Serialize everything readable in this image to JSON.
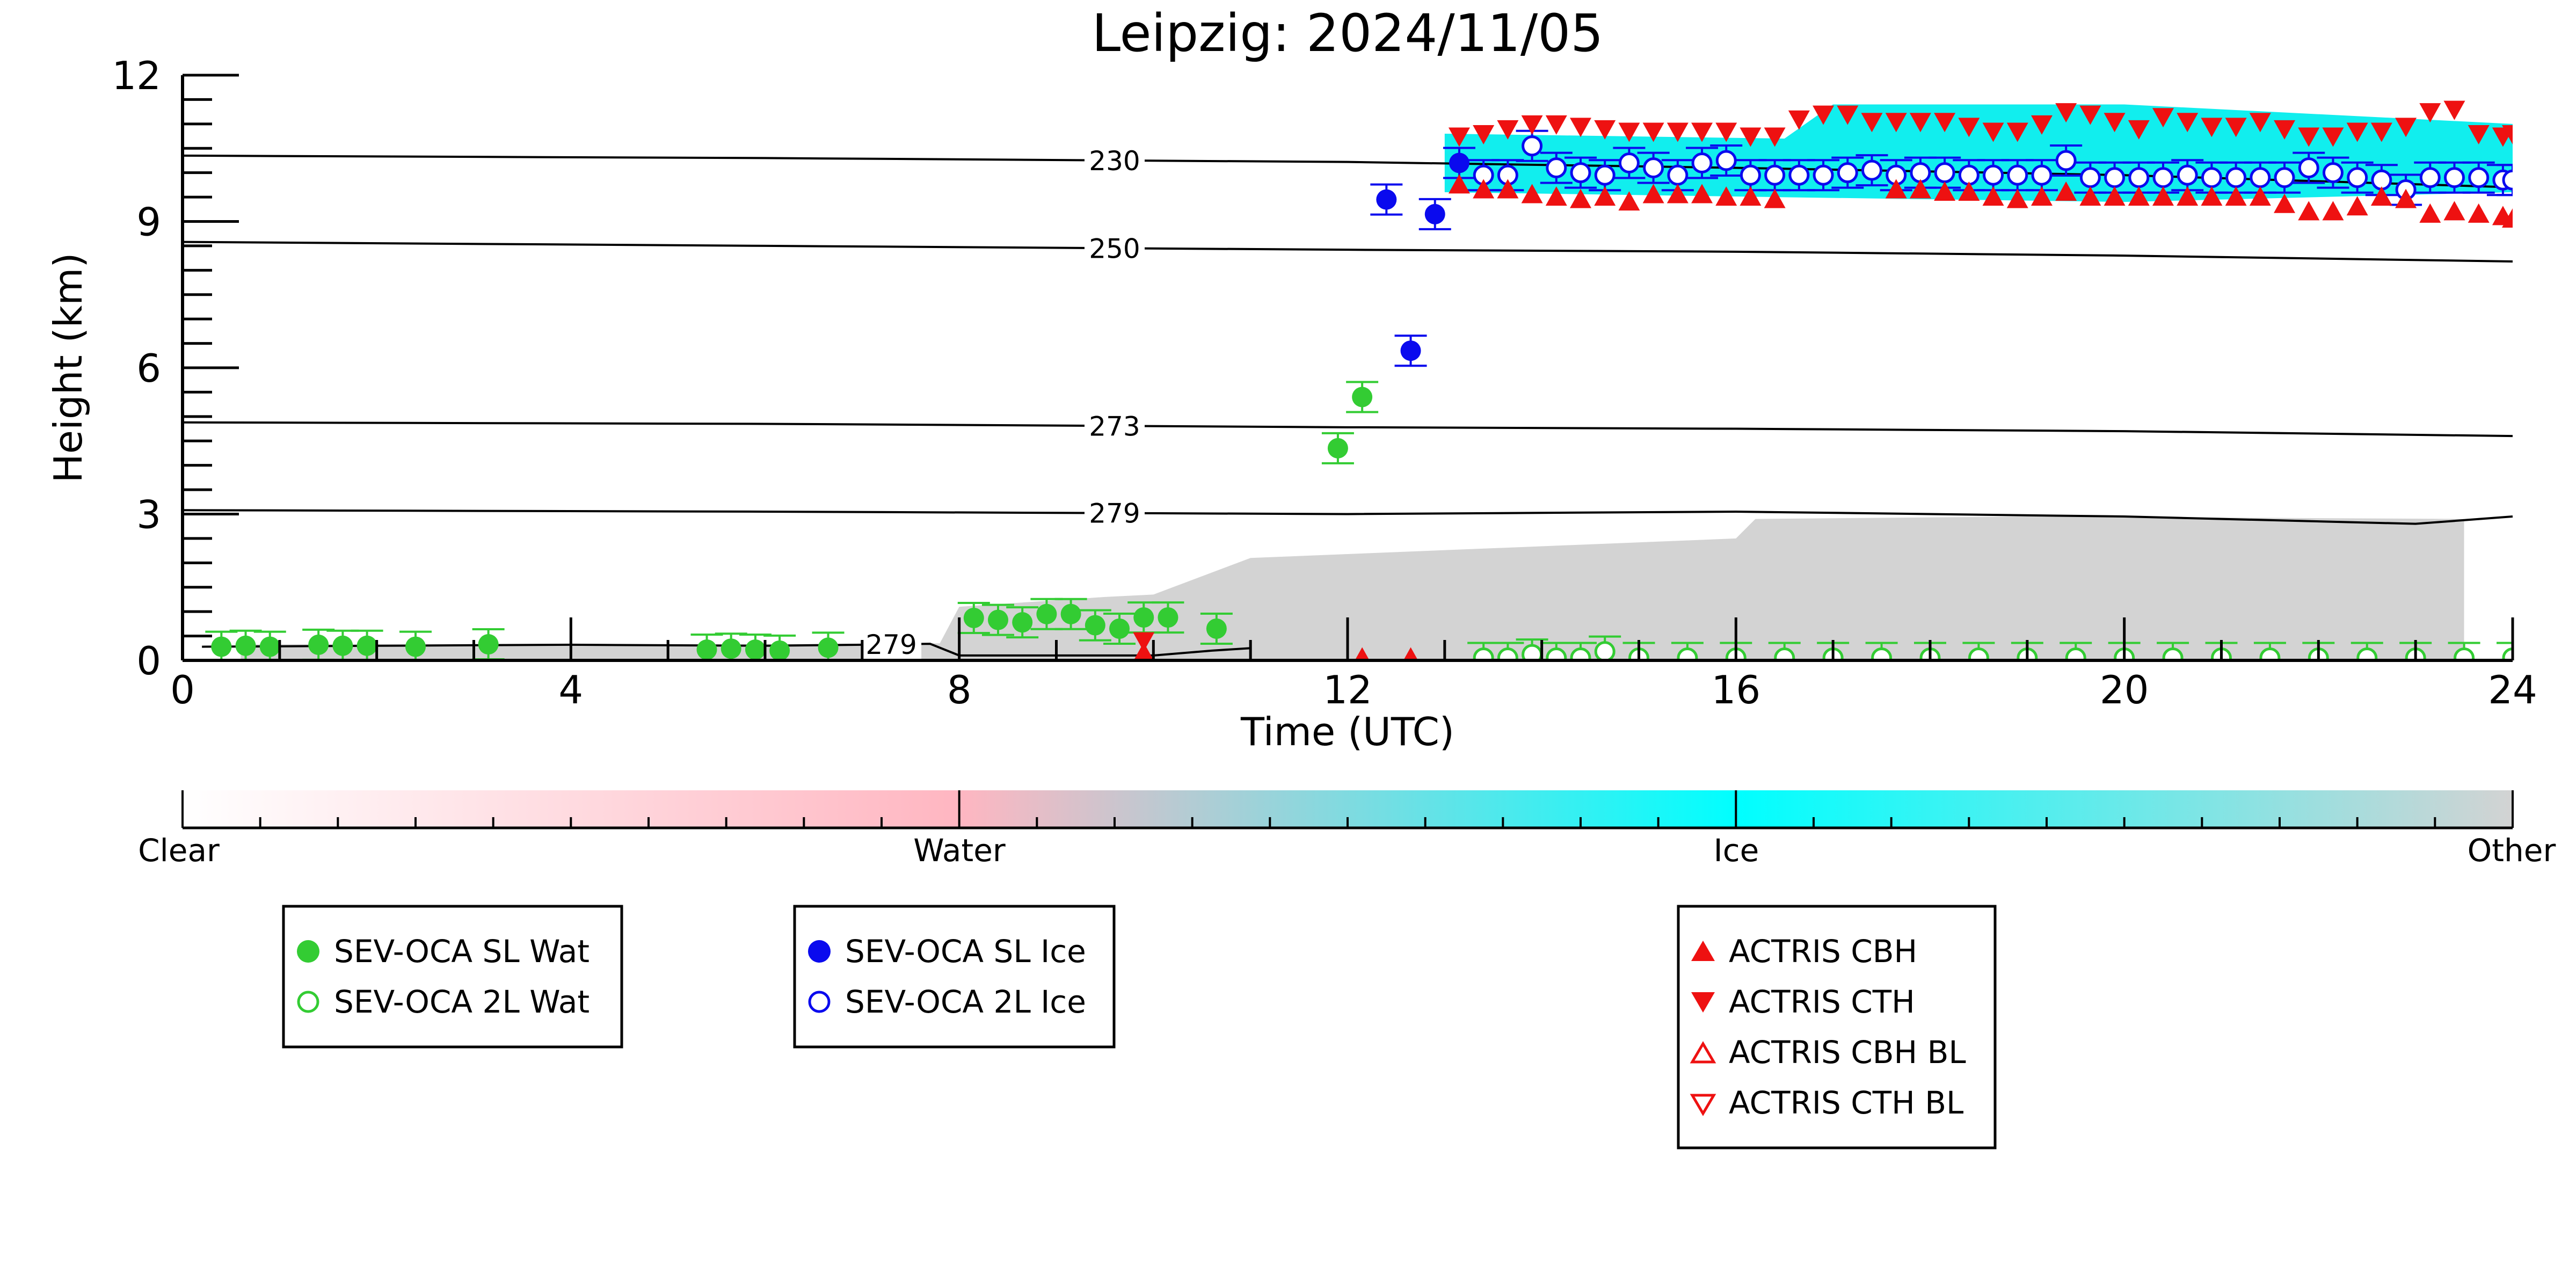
{
  "chart_data": {
    "type": "scatter",
    "title": "Leipzig: 2024/11/05",
    "xlabel": "Time (UTC)",
    "ylabel": "Height (km)",
    "xlim": [
      0,
      24
    ],
    "ylim": [
      0,
      12
    ],
    "x_ticks": [
      "0",
      "4",
      "8",
      "12",
      "16",
      "20",
      "24"
    ],
    "y_ticks": [
      "0",
      "3",
      "6",
      "9",
      "12"
    ],
    "colorbar_labels": [
      "Clear",
      "Water",
      "Ice",
      "Other"
    ],
    "colors": {
      "sl_wat": "#33cc33",
      "twol_wat": "#33cc33",
      "sl_ice": "#0a0aee",
      "twol_ice": "#0a0aee",
      "actris": "#ee1111",
      "ice_region": "#11eeee",
      "other_region": "#d3d3d3",
      "water_colorbar": "#ffb6c1"
    },
    "isotherms": [
      {
        "label": "230",
        "label_x": 9.6,
        "points": [
          [
            0,
            10.35
          ],
          [
            6,
            10.3
          ],
          [
            12,
            10.22
          ],
          [
            16,
            10.1
          ],
          [
            20,
            9.95
          ],
          [
            24,
            9.7
          ]
        ]
      },
      {
        "label": "250",
        "label_x": 9.6,
        "points": [
          [
            0,
            8.58
          ],
          [
            6,
            8.5
          ],
          [
            12,
            8.42
          ],
          [
            16,
            8.38
          ],
          [
            20,
            8.3
          ],
          [
            24,
            8.18
          ]
        ]
      },
      {
        "label": "273",
        "label_x": 9.6,
        "points": [
          [
            0,
            4.88
          ],
          [
            6,
            4.85
          ],
          [
            12,
            4.78
          ],
          [
            16,
            4.75
          ],
          [
            20,
            4.7
          ],
          [
            24,
            4.6
          ]
        ]
      },
      {
        "label": "279",
        "label_x": 9.6,
        "points": [
          [
            0,
            3.08
          ],
          [
            6,
            3.05
          ],
          [
            12,
            3.0
          ],
          [
            16,
            3.05
          ],
          [
            20,
            2.95
          ],
          [
            23,
            2.8
          ],
          [
            24,
            2.95
          ]
        ]
      },
      {
        "label": "279",
        "label_x": 7.3,
        "points": [
          [
            0.2,
            0.28
          ],
          [
            2,
            0.3
          ],
          [
            4,
            0.32
          ],
          [
            6,
            0.3
          ],
          [
            7.0,
            0.32
          ],
          [
            7.7,
            0.34
          ],
          [
            8,
            0.1
          ],
          [
            10,
            0.1
          ],
          [
            10.6,
            0.2
          ],
          [
            11,
            0.25
          ]
        ]
      }
    ],
    "series": [
      {
        "name": "SEV-OCA SL Wat",
        "points": [
          [
            0.4,
            0.28
          ],
          [
            0.65,
            0.3
          ],
          [
            0.9,
            0.28
          ],
          [
            1.4,
            0.32
          ],
          [
            1.65,
            0.3
          ],
          [
            1.9,
            0.3
          ],
          [
            2.4,
            0.28
          ],
          [
            3.15,
            0.33
          ],
          [
            5.4,
            0.22
          ],
          [
            5.65,
            0.24
          ],
          [
            5.9,
            0.22
          ],
          [
            6.15,
            0.2
          ],
          [
            6.65,
            0.26
          ],
          [
            8.15,
            0.87
          ],
          [
            8.4,
            0.83
          ],
          [
            8.65,
            0.78
          ],
          [
            8.9,
            0.95
          ],
          [
            9.15,
            0.95
          ],
          [
            9.4,
            0.72
          ],
          [
            9.65,
            0.65
          ],
          [
            9.9,
            0.88
          ],
          [
            10.15,
            0.88
          ],
          [
            10.65,
            0.65
          ],
          [
            11.9,
            4.35
          ],
          [
            12.15,
            5.4
          ]
        ]
      },
      {
        "name": "SEV-OCA 2L Wat",
        "points": [
          [
            13.4,
            0.05
          ],
          [
            13.65,
            0.05
          ],
          [
            13.9,
            0.12
          ],
          [
            14.15,
            0.05
          ],
          [
            14.4,
            0.05
          ],
          [
            14.65,
            0.18
          ],
          [
            15.0,
            0.05
          ],
          [
            15.5,
            0.05
          ],
          [
            16.0,
            0.05
          ],
          [
            16.5,
            0.05
          ],
          [
            17.0,
            0.05
          ],
          [
            17.5,
            0.05
          ],
          [
            18.0,
            0.05
          ],
          [
            18.5,
            0.05
          ],
          [
            19.0,
            0.05
          ],
          [
            19.5,
            0.05
          ],
          [
            20.0,
            0.05
          ],
          [
            20.5,
            0.05
          ],
          [
            21.0,
            0.05
          ],
          [
            21.5,
            0.05
          ],
          [
            22.0,
            0.05
          ],
          [
            22.5,
            0.05
          ],
          [
            23.0,
            0.05
          ],
          [
            23.5,
            0.05
          ],
          [
            24.0,
            0.05
          ]
        ]
      },
      {
        "name": "SEV-OCA SL Ice",
        "points": [
          [
            12.4,
            9.45
          ],
          [
            12.65,
            6.35
          ],
          [
            12.9,
            9.15
          ],
          [
            13.15,
            10.2
          ]
        ]
      },
      {
        "name": "SEV-OCA 2L Ice",
        "points": [
          [
            13.4,
            9.95
          ],
          [
            13.65,
            9.95
          ],
          [
            13.9,
            10.55
          ],
          [
            14.15,
            10.1
          ],
          [
            14.4,
            10.0
          ],
          [
            14.65,
            9.95
          ],
          [
            14.9,
            10.2
          ],
          [
            15.15,
            10.1
          ],
          [
            15.4,
            9.95
          ],
          [
            15.65,
            10.2
          ],
          [
            15.9,
            10.25
          ],
          [
            16.15,
            9.95
          ],
          [
            16.4,
            9.95
          ],
          [
            16.65,
            9.95
          ],
          [
            16.9,
            9.95
          ],
          [
            17.15,
            10.0
          ],
          [
            17.4,
            10.05
          ],
          [
            17.65,
            9.95
          ],
          [
            17.9,
            10.0
          ],
          [
            18.15,
            10.0
          ],
          [
            18.4,
            9.95
          ],
          [
            18.65,
            9.95
          ],
          [
            18.9,
            9.95
          ],
          [
            19.15,
            9.95
          ],
          [
            19.4,
            10.25
          ],
          [
            19.65,
            9.9
          ],
          [
            19.9,
            9.9
          ],
          [
            20.15,
            9.9
          ],
          [
            20.4,
            9.9
          ],
          [
            20.65,
            9.95
          ],
          [
            20.9,
            9.9
          ],
          [
            21.15,
            9.9
          ],
          [
            21.4,
            9.9
          ],
          [
            21.65,
            9.9
          ],
          [
            21.9,
            10.1
          ],
          [
            22.15,
            10.0
          ],
          [
            22.4,
            9.9
          ],
          [
            22.65,
            9.85
          ],
          [
            22.9,
            9.65
          ],
          [
            23.15,
            9.9
          ],
          [
            23.4,
            9.9
          ],
          [
            23.65,
            9.9
          ],
          [
            23.9,
            9.85
          ],
          [
            24.0,
            9.85
          ]
        ]
      },
      {
        "name": "ACTRIS CBH",
        "points": [
          [
            13.15,
            9.75
          ],
          [
            13.4,
            9.65
          ],
          [
            13.65,
            9.65
          ],
          [
            13.9,
            9.55
          ],
          [
            14.15,
            9.5
          ],
          [
            14.4,
            9.45
          ],
          [
            14.65,
            9.5
          ],
          [
            14.9,
            9.4
          ],
          [
            15.15,
            9.55
          ],
          [
            15.4,
            9.55
          ],
          [
            15.65,
            9.55
          ],
          [
            15.9,
            9.5
          ],
          [
            16.15,
            9.5
          ],
          [
            16.4,
            9.45
          ],
          [
            17.65,
            9.65
          ],
          [
            17.9,
            9.65
          ],
          [
            18.15,
            9.6
          ],
          [
            18.4,
            9.6
          ],
          [
            18.65,
            9.5
          ],
          [
            18.9,
            9.45
          ],
          [
            19.15,
            9.5
          ],
          [
            19.4,
            9.6
          ],
          [
            19.65,
            9.5
          ],
          [
            19.9,
            9.5
          ],
          [
            20.15,
            9.5
          ],
          [
            20.4,
            9.5
          ],
          [
            20.65,
            9.5
          ],
          [
            20.9,
            9.5
          ],
          [
            21.15,
            9.5
          ],
          [
            21.4,
            9.5
          ],
          [
            21.65,
            9.35
          ],
          [
            21.9,
            9.2
          ],
          [
            22.15,
            9.2
          ],
          [
            22.4,
            9.3
          ],
          [
            22.65,
            9.5
          ],
          [
            22.9,
            9.45
          ],
          [
            23.15,
            9.15
          ],
          [
            23.4,
            9.2
          ],
          [
            23.65,
            9.15
          ],
          [
            23.9,
            9.1
          ],
          [
            24.0,
            9.05
          ],
          [
            12.15,
            0.05
          ],
          [
            12.65,
            0.05
          ],
          [
            9.9,
            0.15
          ]
        ]
      },
      {
        "name": "ACTRIS CTH",
        "points": [
          [
            13.15,
            10.75
          ],
          [
            13.4,
            10.8
          ],
          [
            13.65,
            10.9
          ],
          [
            13.9,
            11.0
          ],
          [
            14.15,
            11.0
          ],
          [
            14.4,
            10.95
          ],
          [
            14.65,
            10.9
          ],
          [
            14.9,
            10.85
          ],
          [
            15.15,
            10.85
          ],
          [
            15.4,
            10.85
          ],
          [
            15.65,
            10.85
          ],
          [
            15.9,
            10.85
          ],
          [
            16.15,
            10.75
          ],
          [
            16.4,
            10.75
          ],
          [
            16.65,
            11.1
          ],
          [
            16.9,
            11.2
          ],
          [
            17.15,
            11.2
          ],
          [
            17.4,
            11.05
          ],
          [
            17.65,
            11.05
          ],
          [
            17.9,
            11.05
          ],
          [
            18.15,
            11.05
          ],
          [
            18.4,
            10.95
          ],
          [
            18.65,
            10.85
          ],
          [
            18.9,
            10.85
          ],
          [
            19.15,
            11.0
          ],
          [
            19.4,
            11.25
          ],
          [
            19.65,
            11.2
          ],
          [
            19.9,
            11.05
          ],
          [
            20.15,
            10.9
          ],
          [
            20.4,
            11.15
          ],
          [
            20.65,
            11.05
          ],
          [
            20.9,
            10.95
          ],
          [
            21.15,
            10.95
          ],
          [
            21.4,
            11.05
          ],
          [
            21.65,
            10.9
          ],
          [
            21.9,
            10.75
          ],
          [
            22.15,
            10.75
          ],
          [
            22.4,
            10.85
          ],
          [
            22.65,
            10.85
          ],
          [
            22.9,
            10.95
          ],
          [
            23.15,
            11.25
          ],
          [
            23.4,
            11.3
          ],
          [
            23.65,
            10.8
          ],
          [
            23.9,
            10.75
          ],
          [
            24.0,
            10.8
          ],
          [
            9.9,
            0.4
          ]
        ]
      }
    ],
    "ice_cloud_region": [
      [
        13.0,
        10.8
      ],
      [
        16.5,
        10.7
      ],
      [
        17.0,
        11.4
      ],
      [
        20.0,
        11.4
      ],
      [
        24.0,
        11.0
      ],
      [
        24.0,
        9.6
      ],
      [
        20.0,
        9.4
      ],
      [
        16.4,
        9.5
      ],
      [
        13.0,
        9.6
      ]
    ],
    "other_region": [
      [
        0.6,
        0.33
      ],
      [
        5.0,
        0.32
      ],
      [
        7.8,
        0.35
      ],
      [
        8.0,
        1.1
      ],
      [
        9.5,
        1.3
      ],
      [
        10.0,
        1.35
      ],
      [
        11.0,
        2.1
      ],
      [
        16.0,
        2.5
      ],
      [
        16.2,
        2.9
      ],
      [
        19.0,
        2.95
      ],
      [
        23.5,
        2.9
      ],
      [
        23.5,
        0.0
      ],
      [
        0.6,
        0.0
      ]
    ],
    "legends": [
      {
        "entries": [
          "SEV-OCA SL Wat",
          "SEV-OCA 2L Wat"
        ]
      },
      {
        "entries": [
          "SEV-OCA SL Ice",
          "SEV-OCA 2L Ice"
        ]
      },
      {
        "entries": [
          "ACTRIS CBH",
          "ACTRIS CTH",
          "ACTRIS CBH BL",
          "ACTRIS CTH BL"
        ]
      }
    ]
  }
}
